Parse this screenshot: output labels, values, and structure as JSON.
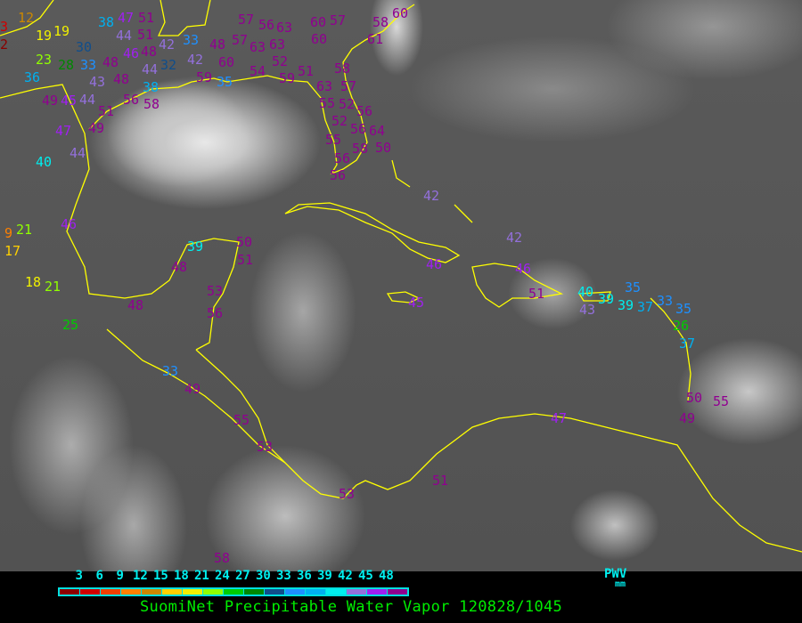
{
  "title": "SuomiNet Precipitable Water Vapor 120828/1045",
  "legend": {
    "unit_label": "PWV",
    "unit": "mm",
    "ticks": [
      "3",
      "6",
      "9",
      "12",
      "15",
      "18",
      "21",
      "24",
      "27",
      "30",
      "33",
      "36",
      "39",
      "42",
      "45",
      "48"
    ],
    "colors": [
      "#8b0000",
      "#d00000",
      "#f04000",
      "#ff8000",
      "#cc8800",
      "#ffd000",
      "#f0f000",
      "#90ff00",
      "#00cc00",
      "#008800",
      "#104e8b",
      "#1e90ff",
      "#00b0f0",
      "#00eeee",
      "#9370db",
      "#a020f0",
      "#900090"
    ]
  },
  "coastline_color": "#ffff00",
  "stations": [
    3,
    12,
    19,
    19,
    2,
    38,
    51,
    51,
    30,
    44,
    47,
    46,
    48,
    42,
    33,
    48,
    57,
    63,
    23,
    28,
    33,
    48,
    44,
    32,
    42,
    60,
    36,
    43,
    48,
    38,
    59,
    35,
    49,
    45,
    44,
    51,
    56,
    58,
    47,
    49,
    44,
    40,
    46,
    9,
    21,
    17,
    18,
    21,
    25,
    39,
    48,
    50,
    51,
    48,
    53,
    56,
    33,
    49,
    55,
    53,
    58,
    56,
    57,
    60,
    57,
    60,
    63,
    63,
    52,
    58,
    60,
    61,
    54,
    59,
    51,
    58,
    63,
    57,
    55,
    52,
    56,
    52,
    56,
    64,
    50,
    55,
    58,
    56,
    56,
    42,
    42,
    46,
    45,
    46,
    51,
    40,
    43,
    39,
    35,
    39,
    37,
    33,
    35,
    26,
    37,
    50,
    55,
    49,
    47,
    51,
    53
  ]
}
